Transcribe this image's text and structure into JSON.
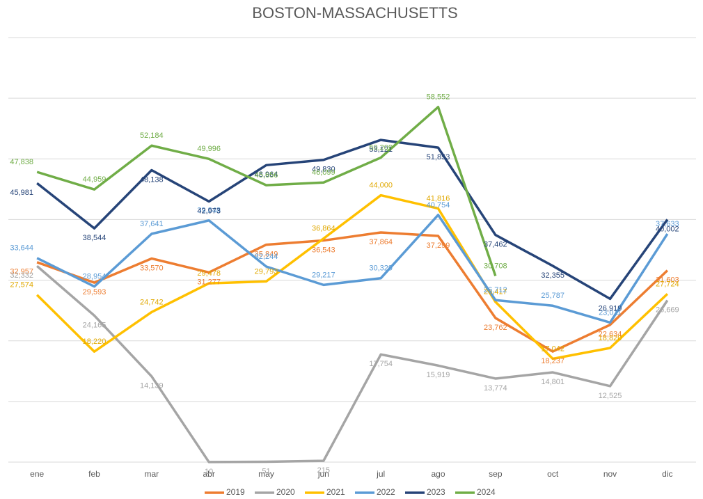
{
  "chart_data": {
    "type": "line",
    "title": "BOSTON-MASSACHUSETTS",
    "categories": [
      "ene",
      "feb",
      "mar",
      "abr",
      "may",
      "jun",
      "jul",
      "ago",
      "sep",
      "oct",
      "nov",
      "dic"
    ],
    "ylim": [
      0,
      70000
    ],
    "yticks": [
      0,
      10000,
      20000,
      30000,
      40000,
      50000,
      60000,
      70000
    ],
    "grid": true,
    "legend": "bottom",
    "series": [
      {
        "name": "2019",
        "color": "#ed7d31",
        "values": [
          32957,
          29593,
          33570,
          31277,
          35849,
          36543,
          37864,
          37299,
          23762,
          18237,
          22634,
          31603
        ],
        "value_labels": [
          "32,957",
          "29,593",
          "33,570",
          "31,277",
          "35,849",
          "36,543",
          "37,864",
          "37,299",
          "23,762",
          "18,237",
          "22,634",
          "31,603"
        ]
      },
      {
        "name": "2020",
        "color": "#a5a5a5",
        "values": [
          32332,
          24165,
          14139,
          10,
          51,
          215,
          17754,
          15919,
          13774,
          14801,
          12525,
          26669
        ],
        "value_labels": [
          "32,332",
          "24,165",
          "14,139",
          "10",
          "51",
          "215",
          "17,754",
          "15,919",
          "13,774",
          "14,801",
          "12,525",
          "26,669"
        ]
      },
      {
        "name": "2021",
        "color": "#ffc000",
        "values": [
          27574,
          18220,
          24742,
          29478,
          29793,
          36864,
          44000,
          41816,
          26417,
          17042,
          18820,
          27724
        ],
        "value_labels": [
          "27,574",
          "18,220",
          "24,742",
          "29,478",
          "29,793",
          "36,864",
          "44,000",
          "41,816",
          "26,417",
          "17,042",
          "18,820",
          "27,724"
        ]
      },
      {
        "name": "2022",
        "color": "#5b9bd5",
        "values": [
          33644,
          28954,
          37641,
          39848,
          32244,
          29217,
          30329,
          40754,
          26712,
          25787,
          23011,
          37633
        ],
        "value_labels": [
          "33,644",
          "28,954",
          "37,641",
          "39,848",
          "32,244",
          "29,217",
          "30,329",
          "40,754",
          "26,712",
          "25,787",
          "23,011",
          "37,633"
        ]
      },
      {
        "name": "2023",
        "color": "#264478",
        "values": [
          45981,
          38544,
          48138,
          42973,
          48964,
          49830,
          53121,
          51853,
          37462,
          32355,
          26919,
          40002
        ],
        "value_labels": [
          "45,981",
          "38,544",
          "48,138",
          "42,973",
          "48,964",
          "49,830",
          "53,121",
          "51,853",
          "37,462",
          "32,355",
          "26,919",
          "40,002"
        ]
      },
      {
        "name": "2024",
        "color": "#70ad47",
        "values": [
          47838,
          44959,
          52184,
          49996,
          45656,
          46099,
          50209,
          58552,
          30708,
          null,
          null,
          null
        ],
        "value_labels": [
          "47,838",
          "44,959",
          "52,184",
          "49,996",
          "45,656",
          "46,099",
          "50,209",
          "58,552",
          "30,708",
          null,
          null,
          null
        ]
      }
    ]
  }
}
